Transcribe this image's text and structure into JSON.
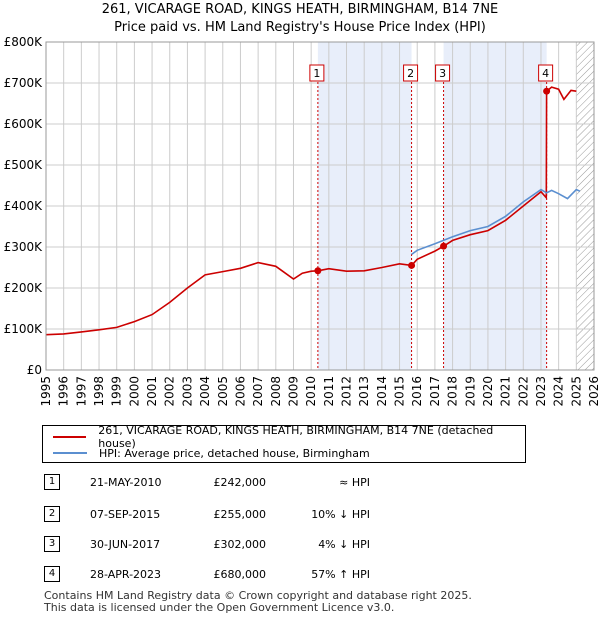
{
  "title_line1": "261, VICARAGE ROAD, KINGS HEATH, BIRMINGHAM, B14 7NE",
  "title_line2": "Price paid vs. HM Land Registry's House Price Index (HPI)",
  "colors": {
    "property": "#cc0000",
    "hpi": "#5b8fd0",
    "shade": "#e8eefa",
    "grid": "#cccccc",
    "future_hatch": "#999999"
  },
  "chart_data": {
    "type": "line",
    "x_range": [
      1995,
      2026
    ],
    "y_range": [
      0,
      800000
    ],
    "x_ticks": [
      "1995",
      "1996",
      "1997",
      "1998",
      "1999",
      "2000",
      "2001",
      "2002",
      "2003",
      "2004",
      "2005",
      "2006",
      "2007",
      "2008",
      "2009",
      "2010",
      "2011",
      "2012",
      "2013",
      "2014",
      "2015",
      "2016",
      "2017",
      "2018",
      "2019",
      "2020",
      "2021",
      "2022",
      "2023",
      "2024",
      "2025",
      "2026"
    ],
    "y_ticks": [
      {
        "value": 0,
        "label": "£0"
      },
      {
        "value": 100000,
        "label": "£100K"
      },
      {
        "value": 200000,
        "label": "£200K"
      },
      {
        "value": 300000,
        "label": "£300K"
      },
      {
        "value": 400000,
        "label": "£400K"
      },
      {
        "value": 500000,
        "label": "£500K"
      },
      {
        "value": 600000,
        "label": "£600K"
      },
      {
        "value": 700000,
        "label": "£700K"
      },
      {
        "value": 800000,
        "label": "£800K"
      }
    ],
    "shaded_ranges": [
      [
        2010.38,
        2015.68
      ],
      [
        2017.49,
        2023.32
      ]
    ],
    "future_from": 2025.0,
    "series": [
      {
        "name": "261, VICARAGE ROAD, KINGS HEATH, BIRMINGHAM, B14 7NE (detached house)",
        "points": [
          [
            1995,
            86000
          ],
          [
            1996,
            88000
          ],
          [
            1997,
            93000
          ],
          [
            1998,
            98000
          ],
          [
            1999,
            104000
          ],
          [
            2000,
            118000
          ],
          [
            2001,
            135000
          ],
          [
            2002,
            165000
          ],
          [
            2003,
            200000
          ],
          [
            2004,
            232000
          ],
          [
            2005,
            240000
          ],
          [
            2006,
            248000
          ],
          [
            2007,
            262000
          ],
          [
            2008,
            253000
          ],
          [
            2009,
            222000
          ],
          [
            2009.5,
            236000
          ],
          [
            2010,
            241000
          ],
          [
            2010.38,
            242000
          ],
          [
            2011,
            247000
          ],
          [
            2012,
            241000
          ],
          [
            2013,
            242000
          ],
          [
            2014,
            250000
          ],
          [
            2015,
            259000
          ],
          [
            2015.68,
            255000
          ],
          [
            2016,
            270000
          ],
          [
            2017,
            290000
          ],
          [
            2017.49,
            302000
          ],
          [
            2018,
            316000
          ],
          [
            2019,
            330000
          ],
          [
            2020,
            340000
          ],
          [
            2021,
            365000
          ],
          [
            2022,
            400000
          ],
          [
            2023,
            435000
          ],
          [
            2023.3,
            420000
          ],
          [
            2023.32,
            680000
          ],
          [
            2023.6,
            690000
          ],
          [
            2024,
            685000
          ],
          [
            2024.3,
            660000
          ],
          [
            2024.7,
            682000
          ],
          [
            2025,
            680000
          ]
        ]
      },
      {
        "name": "HPI: Average price, detached house, Birmingham",
        "points": [
          [
            2015.68,
            282000
          ],
          [
            2016,
            292000
          ],
          [
            2017,
            308000
          ],
          [
            2018,
            325000
          ],
          [
            2019,
            340000
          ],
          [
            2020,
            350000
          ],
          [
            2021,
            375000
          ],
          [
            2022,
            410000
          ],
          [
            2023,
            440000
          ],
          [
            2023.32,
            432000
          ],
          [
            2023.6,
            438000
          ],
          [
            2024,
            430000
          ],
          [
            2024.5,
            418000
          ],
          [
            2025,
            440000
          ],
          [
            2025.2,
            436000
          ]
        ]
      }
    ],
    "sales": [
      {
        "label": "1",
        "x": 2010.38,
        "y": 242000
      },
      {
        "label": "2",
        "x": 2015.68,
        "y": 255000
      },
      {
        "label": "3",
        "x": 2017.49,
        "y": 302000
      },
      {
        "label": "4",
        "x": 2023.32,
        "y": 680000
      }
    ]
  },
  "legend": {
    "property_label": "261, VICARAGE ROAD, KINGS HEATH, BIRMINGHAM, B14 7NE (detached house)",
    "hpi_label": "HPI: Average price, detached house, Birmingham"
  },
  "transactions": [
    {
      "num": "1",
      "date": "21-MAY-2010",
      "price": "£242,000",
      "hpi": "≈ HPI"
    },
    {
      "num": "2",
      "date": "07-SEP-2015",
      "price": "£255,000",
      "hpi": "10% ↓ HPI"
    },
    {
      "num": "3",
      "date": "30-JUN-2017",
      "price": "£302,000",
      "hpi": "4% ↓ HPI"
    },
    {
      "num": "4",
      "date": "28-APR-2023",
      "price": "£680,000",
      "hpi": "57% ↑ HPI"
    }
  ],
  "footer": {
    "line1": "Contains HM Land Registry data © Crown copyright and database right 2025.",
    "line2": "This data is licensed under the Open Government Licence v3.0."
  }
}
